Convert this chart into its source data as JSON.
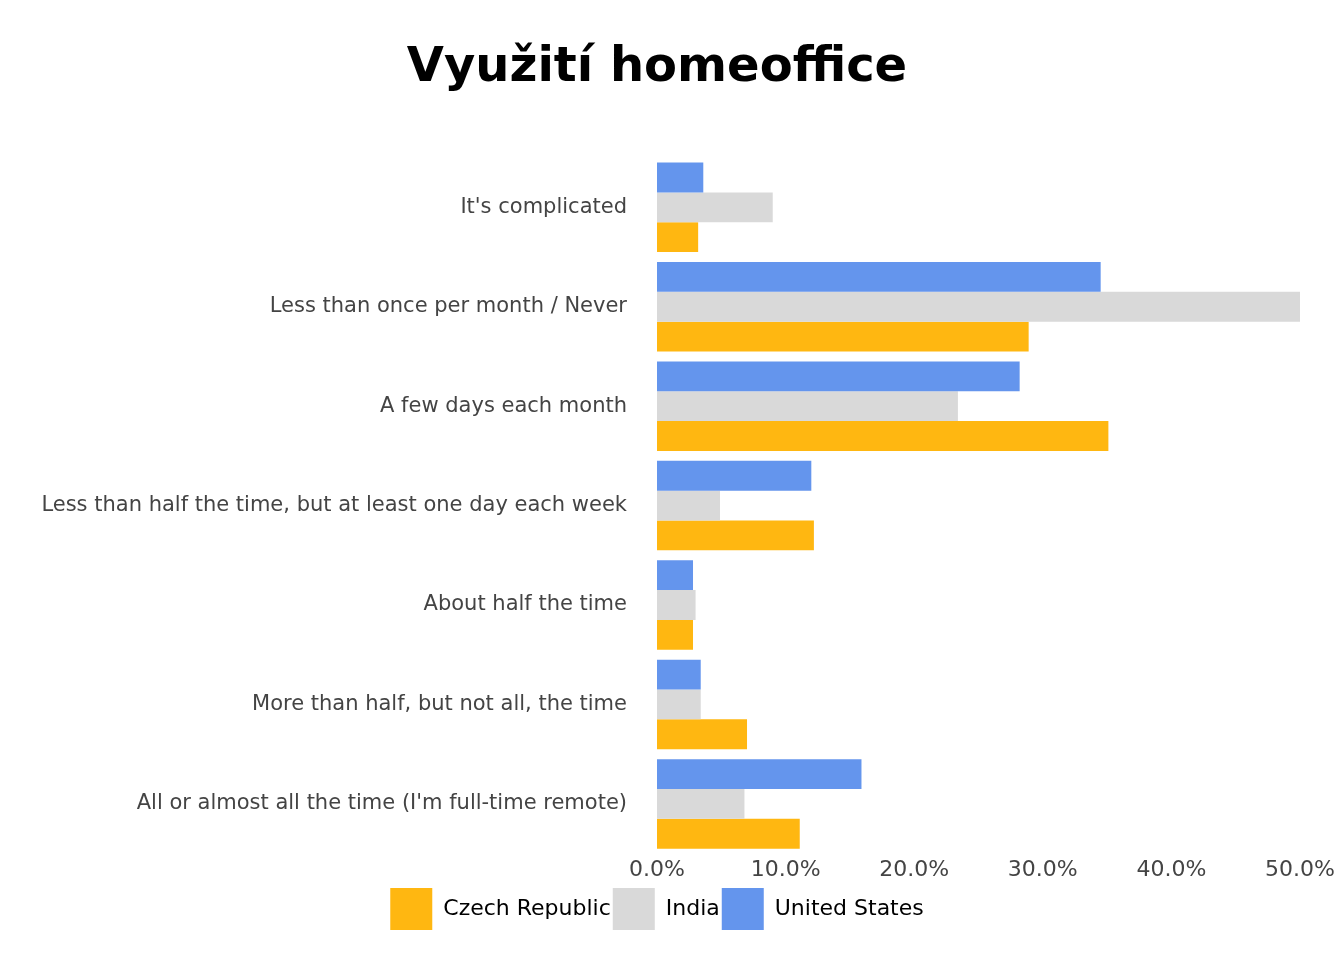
{
  "chart_data": {
    "type": "bar",
    "orientation": "horizontal",
    "title": "Využití homeoffice",
    "categories": [
      "It's complicated",
      "Less than once per month / Never",
      "A few days each month",
      "Less than half the time, but at least one day each week",
      "About half the time",
      "More than half, but not all, the time",
      "All or almost all the time (I'm full-time remote)"
    ],
    "series": [
      {
        "name": "Czech Republic",
        "color": "#ffb711",
        "values": [
          3.2,
          28.9,
          35.1,
          12.2,
          2.8,
          7.0,
          11.1
        ]
      },
      {
        "name": "India",
        "color": "#d9d9d9",
        "values": [
          9.0,
          50.0,
          23.4,
          4.9,
          3.0,
          3.4,
          6.8
        ]
      },
      {
        "name": "United States",
        "color": "#6495ed",
        "values": [
          3.6,
          34.5,
          28.2,
          12.0,
          2.8,
          3.4,
          15.9
        ]
      }
    ],
    "xlim": [
      0,
      50
    ],
    "xticks": [
      {
        "value": 0,
        "label": "0.0%"
      },
      {
        "value": 10,
        "label": "10.0%"
      },
      {
        "value": 20,
        "label": "20.0%"
      },
      {
        "value": 30,
        "label": "30.0%"
      },
      {
        "value": 40,
        "label": "40.0%"
      },
      {
        "value": 50,
        "label": "50.0%"
      }
    ],
    "grid": false,
    "legend": "bottom"
  }
}
